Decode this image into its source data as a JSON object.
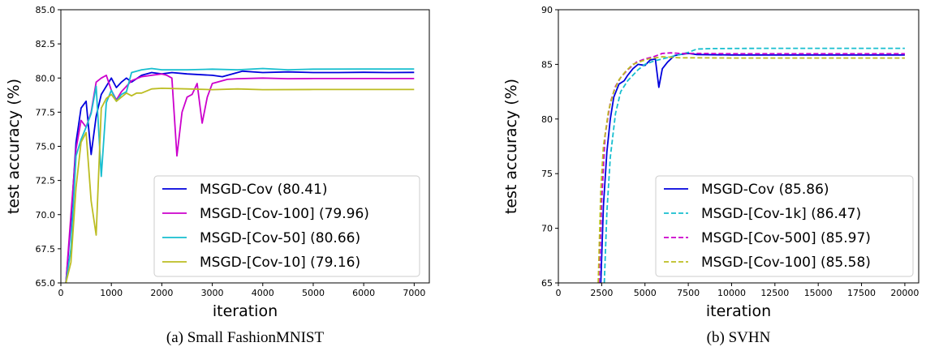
{
  "chart_data": [
    {
      "type": "line",
      "caption": "(a) Small FashionMNIST",
      "xlabel": "iteration",
      "ylabel": "test accuracy (%)",
      "xlim": [
        0,
        7300
      ],
      "ylim": [
        65.0,
        85.0
      ],
      "xticks": [
        0,
        1000,
        2000,
        3000,
        4000,
        5000,
        6000,
        7000
      ],
      "yticks": [
        65.0,
        67.5,
        70.0,
        72.5,
        75.0,
        77.5,
        80.0,
        82.5,
        85.0
      ],
      "ytick_decimals": 1,
      "grid": false,
      "legend_position": "lower-right",
      "series": [
        {
          "name": "MSGD-Cov (80.41)",
          "color": "#0000dd",
          "dash": "solid",
          "x": [
            100,
            200,
            300,
            400,
            500,
            600,
            700,
            800,
            900,
            1000,
            1100,
            1200,
            1300,
            1400,
            1600,
            1800,
            2000,
            2200,
            2500,
            3000,
            3200,
            3600,
            4000,
            4500,
            5000,
            5500,
            6000,
            6500,
            7000
          ],
          "y": [
            65.0,
            69.5,
            75.3,
            77.8,
            78.3,
            74.4,
            77.2,
            78.8,
            79.4,
            80.0,
            79.3,
            79.7,
            80.0,
            79.7,
            80.2,
            80.4,
            80.3,
            80.4,
            80.3,
            80.2,
            80.1,
            80.5,
            80.4,
            80.45,
            80.4,
            80.4,
            80.42,
            80.4,
            80.41
          ]
        },
        {
          "name": "MSGD-[Cov-100] (79.96)",
          "color": "#cc00cc",
          "dash": "solid",
          "x": [
            100,
            200,
            300,
            400,
            500,
            600,
            700,
            800,
            900,
            1000,
            1100,
            1200,
            1400,
            1600,
            1800,
            2000,
            2100,
            2200,
            2300,
            2400,
            2500,
            2600,
            2700,
            2800,
            2900,
            3000,
            3300,
            3500,
            4000,
            4500,
            5000,
            6000,
            7000
          ],
          "y": [
            65.0,
            70.0,
            74.8,
            76.9,
            76.4,
            77.5,
            79.7,
            80.0,
            80.2,
            79.1,
            78.4,
            79.0,
            79.8,
            80.1,
            80.2,
            80.3,
            80.2,
            80.0,
            74.3,
            77.5,
            78.6,
            78.8,
            79.6,
            76.7,
            78.6,
            79.6,
            79.9,
            79.95,
            80.0,
            79.95,
            79.96,
            79.96,
            79.96
          ]
        },
        {
          "name": "MSGD-[Cov-50] (80.66)",
          "color": "#17becf",
          "dash": "solid",
          "x": [
            100,
            200,
            300,
            400,
            500,
            600,
            700,
            800,
            900,
            1000,
            1100,
            1200,
            1300,
            1400,
            1600,
            1800,
            2000,
            2500,
            3000,
            3500,
            4000,
            4500,
            5000,
            6000,
            7000
          ],
          "y": [
            65.0,
            67.5,
            74.3,
            75.5,
            76.4,
            77.4,
            79.4,
            72.8,
            78.2,
            79.1,
            78.3,
            78.8,
            79.0,
            80.4,
            80.6,
            80.7,
            80.6,
            80.6,
            80.65,
            80.6,
            80.7,
            80.6,
            80.65,
            80.66,
            80.66
          ]
        },
        {
          "name": "MSGD-[Cov-10] (79.16)",
          "color": "#bcbd22",
          "dash": "solid",
          "x": [
            100,
            200,
            300,
            400,
            500,
            600,
            700,
            800,
            900,
            1000,
            1100,
            1200,
            1300,
            1400,
            1500,
            1600,
            1800,
            2000,
            2500,
            3000,
            3500,
            4000,
            5000,
            6000,
            7000
          ],
          "y": [
            65.0,
            66.5,
            72.0,
            75.3,
            76.0,
            71.0,
            68.5,
            77.8,
            78.5,
            78.8,
            78.3,
            78.6,
            78.9,
            78.7,
            78.9,
            78.9,
            79.2,
            79.25,
            79.2,
            79.15,
            79.2,
            79.15,
            79.16,
            79.16,
            79.16
          ]
        }
      ]
    },
    {
      "type": "line",
      "caption": "(b) SVHN",
      "xlabel": "iteration",
      "ylabel": "test accuracy (%)",
      "xlim": [
        0,
        20800
      ],
      "ylim": [
        65,
        90
      ],
      "xticks": [
        0,
        2500,
        5000,
        7500,
        10000,
        12500,
        15000,
        17500,
        20000
      ],
      "yticks": [
        65,
        70,
        75,
        80,
        85,
        90
      ],
      "ytick_decimals": 0,
      "grid": false,
      "legend_position": "lower-right",
      "series": [
        {
          "name": "MSGD-Cov (85.86)",
          "color": "#0000dd",
          "dash": "solid",
          "x": [
            2450,
            2600,
            2800,
            3000,
            3200,
            3500,
            3800,
            4000,
            4300,
            4600,
            5000,
            5300,
            5600,
            5800,
            6000,
            6300,
            6700,
            7000,
            7500,
            8000,
            10000,
            15000,
            20000
          ],
          "y": [
            65,
            72,
            77,
            80,
            82,
            83.2,
            83.5,
            84.0,
            84.6,
            85.0,
            84.9,
            85.4,
            85.5,
            82.9,
            84.6,
            85.2,
            85.8,
            85.9,
            86.0,
            85.9,
            85.86,
            85.86,
            85.86
          ]
        },
        {
          "name": "MSGD-[Cov-1k] (86.47)",
          "color": "#17becf",
          "dash": "dashed",
          "x": [
            2650,
            2800,
            3000,
            3300,
            3600,
            4000,
            4300,
            4600,
            5000,
            5500,
            6000,
            6500,
            7000,
            7500,
            8000,
            9000,
            12000,
            16000,
            20000
          ],
          "y": [
            65,
            71.5,
            76.5,
            80.5,
            82.5,
            83.5,
            84.0,
            84.5,
            85.0,
            85.3,
            85.5,
            85.7,
            85.9,
            86.1,
            86.4,
            86.45,
            86.47,
            86.47,
            86.47
          ]
        },
        {
          "name": "MSGD-[Cov-500] (85.97)",
          "color": "#cc00cc",
          "dash": "dashed",
          "x": [
            2350,
            2500,
            2700,
            3000,
            3300,
            3600,
            4000,
            4500,
            5000,
            5500,
            6000,
            6500,
            7000,
            8000,
            10000,
            15000,
            20000
          ],
          "y": [
            65,
            72.5,
            78.5,
            81.5,
            83.0,
            83.8,
            84.5,
            85.2,
            85.5,
            85.7,
            86.0,
            86.05,
            86.0,
            86.0,
            85.97,
            85.97,
            85.97
          ]
        },
        {
          "name": "MSGD-[Cov-100] (85.58)",
          "color": "#bcbd22",
          "dash": "dashed",
          "x": [
            2300,
            2450,
            2600,
            2900,
            3200,
            3500,
            3900,
            4300,
            4800,
            5200,
            5600,
            6000,
            6500,
            7000,
            8000,
            10000,
            15000,
            20000
          ],
          "y": [
            65,
            73.5,
            77.5,
            80.8,
            82.5,
            83.6,
            84.4,
            85.0,
            85.3,
            85.5,
            85.6,
            85.7,
            85.65,
            85.6,
            85.6,
            85.58,
            85.58,
            85.58
          ]
        }
      ]
    }
  ]
}
